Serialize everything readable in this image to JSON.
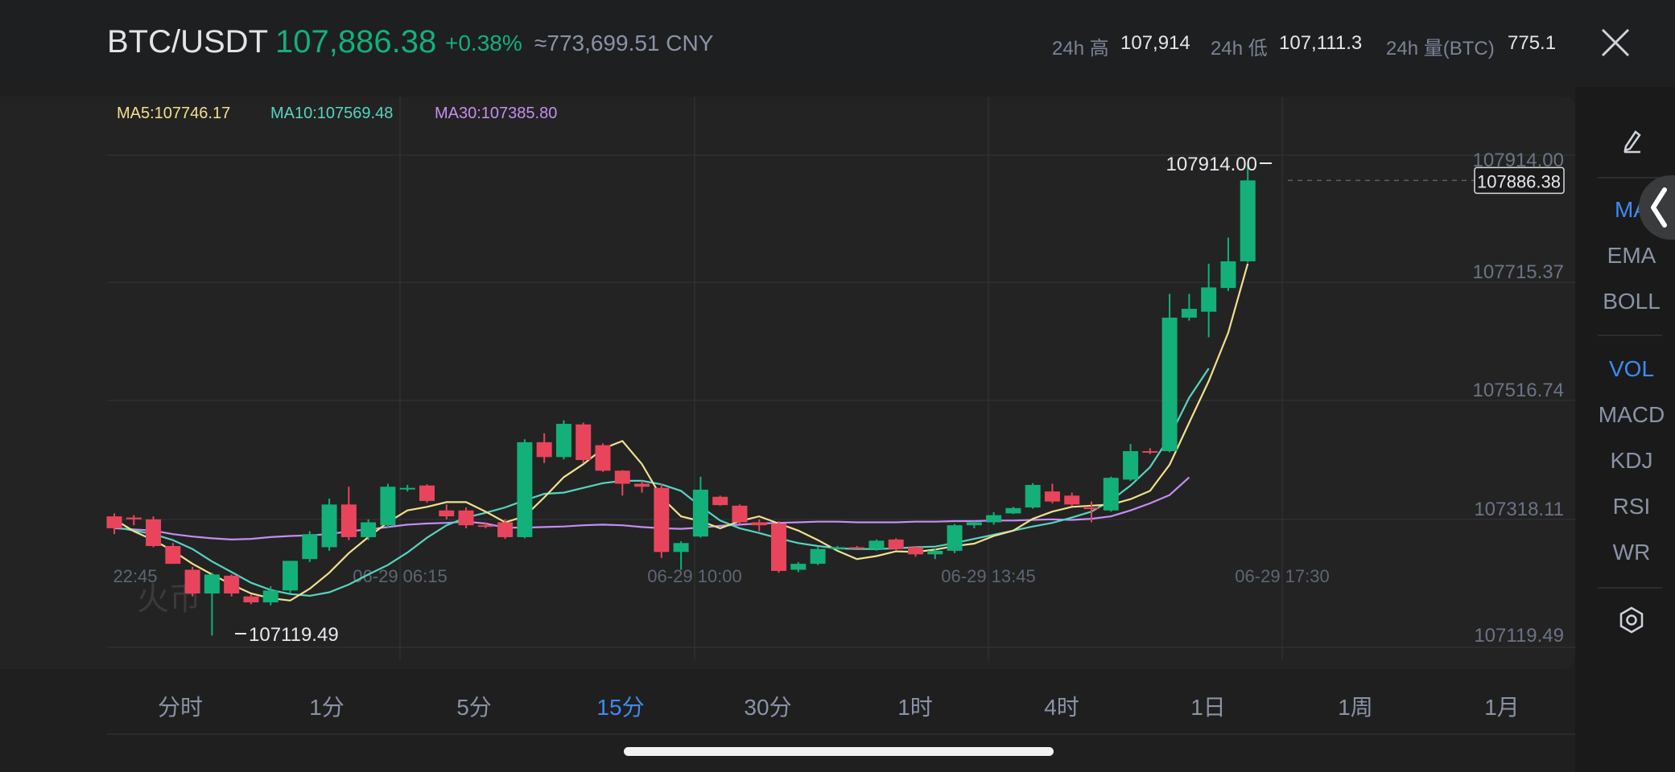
{
  "header": {
    "pair": "BTC/USDT",
    "price": "107,886.38",
    "change": "+0.38%",
    "cny": "≈773,699.51 CNY",
    "stats": [
      {
        "label": "24h 高",
        "value": "107,914"
      },
      {
        "label": "24h 低",
        "value": "107,111.3"
      },
      {
        "label": "24h 量(BTC)",
        "value": "775.1"
      }
    ]
  },
  "indicators": {
    "ma5": "MA5:107746.17",
    "ma10": "MA10:107569.48",
    "ma30": "MA30:107385.80"
  },
  "colors": {
    "up": "#13b07a",
    "down": "#e8455c",
    "ma5": "#f2e08d",
    "ma10": "#55d4c2",
    "ma30": "#c58ef2",
    "accent": "#3c8cf0"
  },
  "chart_data": {
    "type": "candlestick",
    "y_ticks": [
      "107914.00",
      "107715.37",
      "107516.74",
      "107318.11",
      "107119.49"
    ],
    "x_ticks": [
      "22:45",
      "06-29 06:15",
      "06-29 10:00",
      "06-29 13:45",
      "06-29 17:30"
    ],
    "ylim": [
      107119.49,
      107914.0
    ],
    "current_price_label": "107886.38",
    "high_marker": "107914.00",
    "low_marker": "107119.49",
    "candles": [
      {
        "o": 107320,
        "h": 107325,
        "l": 107290,
        "c": 107300
      },
      {
        "o": 107318,
        "h": 107322,
        "l": 107305,
        "c": 107315
      },
      {
        "o": 107315,
        "h": 107320,
        "l": 107268,
        "c": 107270
      },
      {
        "o": 107270,
        "h": 107275,
        "l": 107240,
        "c": 107240
      },
      {
        "o": 107230,
        "h": 107235,
        "l": 107185,
        "c": 107190
      },
      {
        "o": 107190,
        "h": 107225,
        "l": 107119,
        "c": 107222
      },
      {
        "o": 107220,
        "h": 107222,
        "l": 107185,
        "c": 107190
      },
      {
        "o": 107185,
        "h": 107188,
        "l": 107172,
        "c": 107175
      },
      {
        "o": 107175,
        "h": 107202,
        "l": 107170,
        "c": 107195
      },
      {
        "o": 107195,
        "h": 107245,
        "l": 107190,
        "c": 107245
      },
      {
        "o": 107248,
        "h": 107295,
        "l": 107243,
        "c": 107290
      },
      {
        "o": 107268,
        "h": 107350,
        "l": 107262,
        "c": 107340
      },
      {
        "o": 107340,
        "h": 107370,
        "l": 107280,
        "c": 107285
      },
      {
        "o": 107285,
        "h": 107315,
        "l": 107280,
        "c": 107310
      },
      {
        "o": 107305,
        "h": 107375,
        "l": 107300,
        "c": 107370
      },
      {
        "o": 107368,
        "h": 107373,
        "l": 107362,
        "c": 107368
      },
      {
        "o": 107372,
        "h": 107374,
        "l": 107343,
        "c": 107346
      },
      {
        "o": 107330,
        "h": 107340,
        "l": 107315,
        "c": 107320
      },
      {
        "o": 107330,
        "h": 107335,
        "l": 107300,
        "c": 107305
      },
      {
        "o": 107305,
        "h": 107310,
        "l": 107300,
        "c": 107303
      },
      {
        "o": 107310,
        "h": 107315,
        "l": 107282,
        "c": 107285
      },
      {
        "o": 107285,
        "h": 107450,
        "l": 107283,
        "c": 107445
      },
      {
        "o": 107445,
        "h": 107460,
        "l": 107410,
        "c": 107420
      },
      {
        "o": 107420,
        "h": 107482,
        "l": 107416,
        "c": 107476
      },
      {
        "o": 107475,
        "h": 107478,
        "l": 107410,
        "c": 107415
      },
      {
        "o": 107440,
        "h": 107443,
        "l": 107395,
        "c": 107397
      },
      {
        "o": 107397,
        "h": 107398,
        "l": 107355,
        "c": 107375
      },
      {
        "o": 107375,
        "h": 107380,
        "l": 107360,
        "c": 107370
      },
      {
        "o": 107368,
        "h": 107375,
        "l": 107250,
        "c": 107260
      },
      {
        "o": 107260,
        "h": 107278,
        "l": 107230,
        "c": 107275
      },
      {
        "o": 107286,
        "h": 107387,
        "l": 107284,
        "c": 107365
      },
      {
        "o": 107353,
        "h": 107355,
        "l": 107338,
        "c": 107339
      },
      {
        "o": 107338,
        "h": 107340,
        "l": 107307,
        "c": 107310
      },
      {
        "o": 107310,
        "h": 107315,
        "l": 107295,
        "c": 107305
      },
      {
        "o": 107308,
        "h": 107312,
        "l": 107225,
        "c": 107228
      },
      {
        "o": 107230,
        "h": 107243,
        "l": 107226,
        "c": 107240
      },
      {
        "o": 107240,
        "h": 107268,
        "l": 107238,
        "c": 107265
      },
      {
        "o": 107265,
        "h": 107270,
        "l": 107263,
        "c": 107268
      },
      {
        "o": 107268,
        "h": 107270,
        "l": 107266,
        "c": 107267
      },
      {
        "o": 107265,
        "h": 107281,
        "l": 107262,
        "c": 107279
      },
      {
        "o": 107281,
        "h": 107283,
        "l": 107263,
        "c": 107265
      },
      {
        "o": 107268,
        "h": 107270,
        "l": 107252,
        "c": 107256
      },
      {
        "o": 107256,
        "h": 107265,
        "l": 107248,
        "c": 107262
      },
      {
        "o": 107262,
        "h": 107307,
        "l": 107258,
        "c": 107305
      },
      {
        "o": 107305,
        "h": 107312,
        "l": 107300,
        "c": 107310
      },
      {
        "o": 107310,
        "h": 107327,
        "l": 107306,
        "c": 107322
      },
      {
        "o": 107325,
        "h": 107336,
        "l": 107324,
        "c": 107334
      },
      {
        "o": 107335,
        "h": 107376,
        "l": 107333,
        "c": 107373
      },
      {
        "o": 107362,
        "h": 107375,
        "l": 107342,
        "c": 107345
      },
      {
        "o": 107355,
        "h": 107360,
        "l": 107337,
        "c": 107340
      },
      {
        "o": 107335,
        "h": 107345,
        "l": 107310,
        "c": 107333
      },
      {
        "o": 107330,
        "h": 107387,
        "l": 107328,
        "c": 107385
      },
      {
        "o": 107382,
        "h": 107442,
        "l": 107380,
        "c": 107430
      },
      {
        "o": 107430,
        "h": 107435,
        "l": 107425,
        "c": 107428
      },
      {
        "o": 107430,
        "h": 107695,
        "l": 107428,
        "c": 107655
      },
      {
        "o": 107655,
        "h": 107695,
        "l": 107650,
        "c": 107670
      },
      {
        "o": 107665,
        "h": 107746,
        "l": 107622,
        "c": 107706
      },
      {
        "o": 107705,
        "h": 107790,
        "l": 107700,
        "c": 107750
      },
      {
        "o": 107750,
        "h": 107914,
        "l": 107748,
        "c": 107886.38
      }
    ],
    "ma5": [
      107315,
      107295,
      107280,
      107262,
      107240,
      107222,
      107205,
      107190,
      107182,
      107178,
      107198,
      107225,
      107258,
      107285,
      107310,
      107330,
      107336,
      107344,
      107344,
      107328,
      107310,
      107320,
      107352,
      107386,
      107408,
      107434,
      107447,
      107408,
      107352,
      107320,
      107312,
      107300,
      107312,
      107320,
      107308,
      107296,
      107280,
      107262,
      107248,
      107253,
      107261,
      107260,
      107264,
      107270,
      107274,
      107287,
      107296,
      107316,
      107328,
      107336,
      107338,
      107340,
      107349,
      107363,
      107407,
      107478,
      107548,
      107630,
      107746.17
    ],
    "ma10": [
      107302,
      107296,
      107290,
      107280,
      107265,
      107244,
      107226,
      107208,
      107196,
      107189,
      107186,
      107192,
      107205,
      107222,
      107238,
      107259,
      107284,
      107305,
      107318,
      107326,
      107335,
      107347,
      107358,
      107360,
      107368,
      107376,
      107380,
      107380,
      107374,
      107363,
      107337,
      107313,
      107300,
      107292,
      107283,
      107275,
      107270,
      107266,
      107265,
      107265,
      107266,
      107268,
      107269,
      107275,
      107282,
      107289,
      107296,
      107303,
      107309,
      107318,
      107328,
      107347,
      107372,
      107403,
      107454,
      107520,
      107569.48
    ],
    "ma30": [
      107300,
      107298,
      107296,
      107290,
      107286,
      107283,
      107281,
      107282,
      107285,
      107287,
      107288,
      107290,
      107295,
      107298,
      107302,
      107306,
      107308,
      107309,
      107311,
      107308,
      107301,
      107301,
      107302,
      107303,
      107305,
      107306,
      107305,
      107302,
      107300,
      107299,
      107301,
      107304,
      107306,
      107308,
      107309,
      107310,
      107311,
      107311,
      107310,
      107310,
      107310,
      107311,
      107311,
      107312,
      107312,
      107313,
      107313,
      107314,
      107315,
      107314,
      107316,
      107320,
      107330,
      107342,
      107356,
      107385.8
    ]
  },
  "rail": {
    "draw_icon": "pencil-icon",
    "ma": "MA",
    "ema": "EMA",
    "boll": "BOLL",
    "vol": "VOL",
    "macd": "MACD",
    "kdj": "KDJ",
    "rsi": "RSI",
    "wr": "WR",
    "settings_icon": "gear-icon"
  },
  "timeframes": [
    "分时",
    "1分",
    "5分",
    "15分",
    "30分",
    "1时",
    "4时",
    "1日",
    "1周",
    "1月"
  ],
  "active_timeframe": "15分",
  "watermark": "火币"
}
